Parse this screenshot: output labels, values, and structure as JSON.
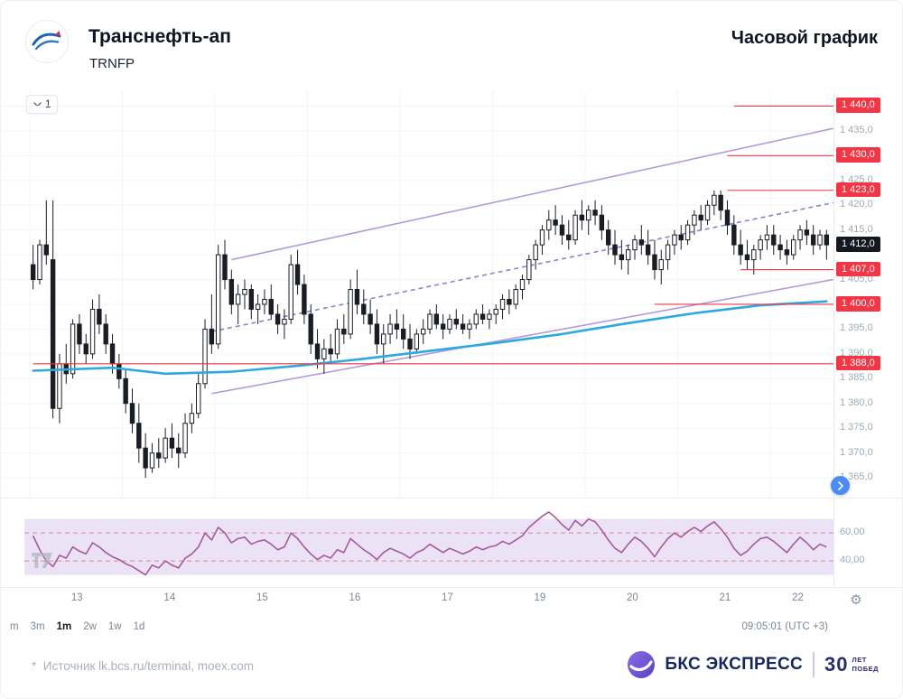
{
  "header": {
    "title": "Транснефть-ап",
    "ticker": "TRNFP",
    "right_title": "Часовой график"
  },
  "interval": {
    "value": "1"
  },
  "chart_data": {
    "type": "candlestick",
    "title": "Транснефть-ап (TRNFP), часовой график",
    "ylim": [
      1361,
      1443
    ],
    "grid": {
      "min": 1365,
      "max": 1440,
      "step": 5
    },
    "day_starts": [
      0,
      14,
      28,
      42,
      56,
      70,
      84,
      98,
      112
    ],
    "x_labels": [
      {
        "label": "13",
        "idx": 7
      },
      {
        "label": "14",
        "idx": 21
      },
      {
        "label": "15",
        "idx": 35
      },
      {
        "label": "16",
        "idx": 49
      },
      {
        "label": "17",
        "idx": 63
      },
      {
        "label": "19",
        "idx": 77
      },
      {
        "label": "20",
        "idx": 91
      },
      {
        "label": "21",
        "idx": 105
      },
      {
        "label": "22",
        "idx": 116
      }
    ],
    "axis_ticks": [
      {
        "label": "1 435,0",
        "price": 1435
      },
      {
        "label": "1 425,0",
        "price": 1425
      },
      {
        "label": "1 420,0",
        "price": 1420
      },
      {
        "label": "1 415,0",
        "price": 1415
      },
      {
        "label": "1 405,0",
        "price": 1405
      },
      {
        "label": "1 395,0",
        "price": 1395
      },
      {
        "label": "1 390,0",
        "price": 1390
      },
      {
        "label": "1 385,0",
        "price": 1385
      },
      {
        "label": "1 380,0",
        "price": 1380
      },
      {
        "label": "1 375,0",
        "price": 1375
      },
      {
        "label": "1 370,0",
        "price": 1370
      },
      {
        "label": "1 365,0",
        "price": 1365
      }
    ],
    "levels": [
      {
        "label": "1 440,0",
        "price": 1440,
        "from_idx": 106
      },
      {
        "label": "1 430,0",
        "price": 1430,
        "from_idx": 105
      },
      {
        "label": "1 423,0",
        "price": 1423,
        "from_idx": 105
      },
      {
        "label": "1 407,0",
        "price": 1407,
        "from_idx": 107
      },
      {
        "label": "1 400,0",
        "price": 1400,
        "from_idx": 94
      },
      {
        "label": "1 388,0",
        "price": 1388,
        "from_idx": 0
      }
    ],
    "last": {
      "label": "1 412,0",
      "price": 1412
    },
    "channel": {
      "lower": {
        "i1": 27,
        "p1": 1382,
        "i2": 121,
        "p2": 1405
      },
      "upper": {
        "i1": 30,
        "p1": 1409,
        "i2": 121,
        "p2": 1435.5
      },
      "middle": {
        "i1": 27,
        "p1": 1394.5,
        "i2": 121,
        "p2": 1420.5
      }
    },
    "ma_points": [
      [
        0,
        1386.6
      ],
      [
        12,
        1387.2
      ],
      [
        20,
        1386.0
      ],
      [
        30,
        1386.4
      ],
      [
        40,
        1387.6
      ],
      [
        50,
        1389.0
      ],
      [
        60,
        1390.6
      ],
      [
        70,
        1392.2
      ],
      [
        80,
        1394.0
      ],
      [
        90,
        1396.2
      ],
      [
        100,
        1398.2
      ],
      [
        110,
        1399.8
      ],
      [
        120,
        1400.6
      ]
    ],
    "candles": [
      [
        1408,
        1412,
        1403,
        1405
      ],
      [
        1405,
        1413,
        1404,
        1412
      ],
      [
        1412,
        1421,
        1408,
        1410
      ],
      [
        1409,
        1421,
        1377,
        1379
      ],
      [
        1379,
        1390,
        1376,
        1388
      ],
      [
        1388,
        1392,
        1384,
        1386
      ],
      [
        1386,
        1397,
        1385,
        1396
      ],
      [
        1396,
        1398,
        1390,
        1392
      ],
      [
        1392,
        1394,
        1388,
        1390
      ],
      [
        1390,
        1401,
        1389,
        1399
      ],
      [
        1399,
        1402,
        1394,
        1396
      ],
      [
        1396,
        1398,
        1390,
        1392
      ],
      [
        1392,
        1394,
        1386,
        1388
      ],
      [
        1388,
        1390,
        1383,
        1385
      ],
      [
        1385,
        1387,
        1378,
        1380
      ],
      [
        1380,
        1383,
        1374,
        1376
      ],
      [
        1376,
        1380,
        1368,
        1371
      ],
      [
        1371,
        1374,
        1365,
        1367
      ],
      [
        1367,
        1372,
        1366,
        1370
      ],
      [
        1370,
        1373,
        1367,
        1369
      ],
      [
        1369,
        1375,
        1368,
        1373
      ],
      [
        1373,
        1376,
        1369,
        1371
      ],
      [
        1371,
        1374,
        1367,
        1370
      ],
      [
        1370,
        1378,
        1369,
        1376
      ],
      [
        1376,
        1380,
        1374,
        1378
      ],
      [
        1378,
        1386,
        1377,
        1384
      ],
      [
        1384,
        1397,
        1383,
        1395
      ],
      [
        1395,
        1402,
        1390,
        1392
      ],
      [
        1392,
        1412,
        1391,
        1410
      ],
      [
        1410,
        1413,
        1403,
        1405
      ],
      [
        1405,
        1407,
        1398,
        1400
      ],
      [
        1400,
        1404,
        1396,
        1402
      ],
      [
        1402,
        1405,
        1399,
        1403
      ],
      [
        1403,
        1404,
        1397,
        1399
      ],
      [
        1399,
        1402,
        1396,
        1400
      ],
      [
        1400,
        1403,
        1398,
        1401
      ],
      [
        1401,
        1404,
        1397,
        1398
      ],
      [
        1398,
        1400,
        1394,
        1396
      ],
      [
        1396,
        1399,
        1393,
        1397
      ],
      [
        1397,
        1410,
        1396,
        1408
      ],
      [
        1408,
        1411,
        1402,
        1404
      ],
      [
        1404,
        1406,
        1396,
        1398
      ],
      [
        1398,
        1400,
        1390,
        1392
      ],
      [
        1392,
        1395,
        1387,
        1389
      ],
      [
        1389,
        1393,
        1386,
        1391
      ],
      [
        1391,
        1394,
        1388,
        1390
      ],
      [
        1390,
        1397,
        1389,
        1395
      ],
      [
        1395,
        1398,
        1392,
        1394
      ],
      [
        1394,
        1405,
        1393,
        1403
      ],
      [
        1403,
        1407,
        1398,
        1400
      ],
      [
        1400,
        1403,
        1396,
        1398
      ],
      [
        1398,
        1401,
        1394,
        1396
      ],
      [
        1396,
        1399,
        1390,
        1392
      ],
      [
        1392,
        1396,
        1388,
        1394
      ],
      [
        1394,
        1398,
        1392,
        1396
      ],
      [
        1396,
        1399,
        1393,
        1395
      ],
      [
        1395,
        1398,
        1391,
        1393
      ],
      [
        1393,
        1396,
        1389,
        1391
      ],
      [
        1391,
        1395,
        1390,
        1394
      ],
      [
        1394,
        1397,
        1392,
        1395
      ],
      [
        1395,
        1399,
        1394,
        1398
      ],
      [
        1398,
        1400,
        1395,
        1396
      ],
      [
        1396,
        1398,
        1393,
        1395
      ],
      [
        1395,
        1398,
        1394,
        1397
      ],
      [
        1397,
        1399,
        1395,
        1396
      ],
      [
        1396,
        1398,
        1394,
        1395
      ],
      [
        1395,
        1397,
        1393,
        1396
      ],
      [
        1396,
        1399,
        1395,
        1398
      ],
      [
        1398,
        1400,
        1396,
        1397
      ],
      [
        1397,
        1399,
        1395,
        1398
      ],
      [
        1398,
        1400,
        1396,
        1399
      ],
      [
        1399,
        1402,
        1397,
        1401
      ],
      [
        1401,
        1403,
        1398,
        1400
      ],
      [
        1400,
        1404,
        1399,
        1403
      ],
      [
        1403,
        1406,
        1401,
        1405
      ],
      [
        1405,
        1410,
        1404,
        1409
      ],
      [
        1409,
        1413,
        1407,
        1412
      ],
      [
        1412,
        1416,
        1410,
        1415
      ],
      [
        1415,
        1419,
        1413,
        1417
      ],
      [
        1417,
        1420,
        1414,
        1416
      ],
      [
        1416,
        1418,
        1412,
        1414
      ],
      [
        1414,
        1417,
        1411,
        1413
      ],
      [
        1413,
        1419,
        1412,
        1418
      ],
      [
        1418,
        1421,
        1415,
        1417
      ],
      [
        1417,
        1420,
        1414,
        1419
      ],
      [
        1419,
        1421,
        1416,
        1418
      ],
      [
        1418,
        1420,
        1413,
        1415
      ],
      [
        1415,
        1417,
        1410,
        1412
      ],
      [
        1412,
        1415,
        1408,
        1410
      ],
      [
        1410,
        1413,
        1407,
        1409
      ],
      [
        1409,
        1412,
        1406,
        1411
      ],
      [
        1411,
        1414,
        1409,
        1413
      ],
      [
        1413,
        1416,
        1410,
        1412
      ],
      [
        1412,
        1415,
        1408,
        1410
      ],
      [
        1410,
        1413,
        1405,
        1407
      ],
      [
        1407,
        1411,
        1404,
        1409
      ],
      [
        1409,
        1413,
        1407,
        1412
      ],
      [
        1412,
        1415,
        1410,
        1414
      ],
      [
        1414,
        1416,
        1411,
        1413
      ],
      [
        1413,
        1417,
        1412,
        1416
      ],
      [
        1416,
        1419,
        1414,
        1418
      ],
      [
        1418,
        1420,
        1415,
        1417
      ],
      [
        1417,
        1421,
        1416,
        1420
      ],
      [
        1420,
        1423,
        1418,
        1422
      ],
      [
        1422,
        1423,
        1417,
        1419
      ],
      [
        1419,
        1421,
        1414,
        1416
      ],
      [
        1416,
        1418,
        1410,
        1412
      ],
      [
        1412,
        1415,
        1408,
        1410
      ],
      [
        1410,
        1413,
        1407,
        1409
      ],
      [
        1409,
        1412,
        1406,
        1411
      ],
      [
        1411,
        1414,
        1409,
        1413
      ],
      [
        1413,
        1416,
        1411,
        1414
      ],
      [
        1414,
        1416,
        1410,
        1412
      ],
      [
        1412,
        1414,
        1409,
        1411
      ],
      [
        1411,
        1413,
        1408,
        1410
      ],
      [
        1410,
        1414,
        1409,
        1413
      ],
      [
        1413,
        1416,
        1411,
        1415
      ],
      [
        1415,
        1417,
        1412,
        1414
      ],
      [
        1414,
        1416,
        1410,
        1412
      ],
      [
        1412,
        1415,
        1411,
        1414
      ],
      [
        1414,
        1415,
        1409,
        1412
      ]
    ],
    "colors": {
      "level": "#f23645",
      "dark": "#15181f",
      "candle": "#1a1d24",
      "ma": "#2da9e1",
      "channel": "#b49bd8",
      "channel_mid": "#8f80d2",
      "grid": "#f2f5f8",
      "rsi": "#a55a9c",
      "rsi_band": "#ece2f6",
      "rsi_dash": "#d2899b",
      "tick": "#9cabb6"
    },
    "indicator": {
      "type": "rsi",
      "ylim": [
        22,
        84
      ],
      "band": [
        30,
        70
      ],
      "lines": [
        {
          "label": "60,00",
          "value": 60
        },
        {
          "label": "40,00",
          "value": 40
        }
      ],
      "values": [
        58,
        48,
        40,
        36,
        44,
        42,
        50,
        47,
        45,
        53,
        50,
        46,
        43,
        41,
        38,
        36,
        33,
        30,
        37,
        35,
        40,
        37,
        35,
        42,
        45,
        50,
        60,
        55,
        64,
        60,
        53,
        56,
        57,
        52,
        54,
        55,
        52,
        48,
        50,
        60,
        56,
        50,
        45,
        41,
        44,
        42,
        48,
        46,
        56,
        52,
        48,
        45,
        41,
        46,
        49,
        47,
        45,
        42,
        46,
        48,
        52,
        49,
        46,
        49,
        47,
        45,
        47,
        50,
        48,
        50,
        51,
        54,
        52,
        55,
        58,
        64,
        68,
        72,
        75,
        71,
        66,
        62,
        69,
        65,
        70,
        68,
        62,
        55,
        49,
        46,
        52,
        57,
        54,
        49,
        43,
        50,
        56,
        60,
        57,
        61,
        64,
        61,
        65,
        68,
        63,
        57,
        49,
        44,
        47,
        52,
        56,
        57,
        54,
        50,
        46,
        52,
        57,
        53,
        48,
        52,
        50
      ]
    }
  },
  "toolbar": {
    "timeframes": [
      {
        "label": "m",
        "active": false
      },
      {
        "label": "3m",
        "active": false
      },
      {
        "label": "1m",
        "active": true
      },
      {
        "label": "2w",
        "active": false
      },
      {
        "label": "1w",
        "active": false
      },
      {
        "label": "1d",
        "active": false
      }
    ],
    "clock": "09:05:01 (UTC +3)"
  },
  "footer": {
    "source_mark": "*",
    "source": "Источник lk.bcs.ru/terminal, moex.com",
    "brand_name": "БКС ЭКСПРЕСС",
    "anniv_num": "30",
    "anniv_line1": "ЛЕТ",
    "anniv_line2": "ПОБЕД"
  }
}
